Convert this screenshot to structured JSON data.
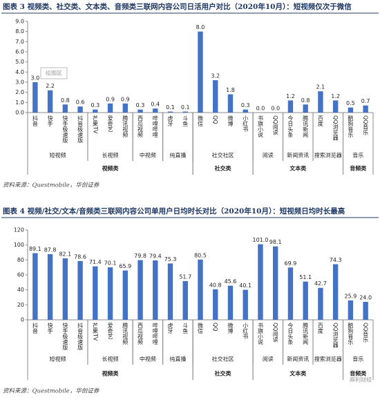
{
  "chart_data": [
    {
      "type": "bar",
      "title": "图表 3  视频类、社交类、文本类、音频类三联网内容公司日活用户对比（2020年10月）：短视频仅次于微信",
      "categories": [
        "抖音",
        "快手",
        "快手极速版",
        "抖音极速版",
        "芒果TV",
        "爱奇艺",
        "腾讯视频",
        "西瓜视频",
        "哔哩哔哩",
        "虎牙",
        "斗鱼",
        "微信",
        "QQ",
        "微博",
        "小红书",
        "书旗小说",
        "QQ阅读",
        "今日头条",
        "腾讯新闻",
        "百度",
        "QQ浏览器",
        "酷狗音乐",
        "QQ音乐"
      ],
      "values": [
        3.0,
        2.2,
        0.8,
        0.6,
        0.3,
        0.9,
        0.9,
        0.3,
        0.4,
        0.1,
        0.1,
        8.0,
        3.2,
        1.8,
        0.3,
        0.0,
        0.0,
        1.2,
        0.8,
        2.1,
        1.2,
        0.5,
        0.7
      ],
      "value_labels": [
        "3.0",
        "2.2",
        "0.8",
        "0.6",
        "0.3",
        "0.9",
        "0.9",
        "0.3",
        "0.4",
        "0.1",
        "0.1",
        "8.0",
        "3.2",
        "1.8",
        "0.3",
        "0.0",
        "0.0",
        "1.2",
        "0.8",
        "2.1",
        "1.2",
        "0.5",
        "0.7"
      ],
      "groups": [
        [
          "短视频",
          null,
          null,
          null,
          "长视频",
          null,
          null,
          "中视频",
          null,
          "纯直播",
          null,
          "社交社区",
          null,
          null,
          null,
          "阅读",
          null,
          "新闻资讯",
          null,
          "搜索浏览器",
          null,
          "音乐",
          null
        ],
        [
          "视频类",
          null,
          null,
          null,
          null,
          null,
          null,
          null,
          null,
          null,
          null,
          "社交类",
          null,
          null,
          null,
          "文本类",
          null,
          null,
          null,
          null,
          null,
          "音频类",
          null
        ]
      ],
      "color": "#4472c4",
      "ylim": [
        0,
        9
      ],
      "yticks": [
        {
          "value": 0,
          "label": "0.0"
        },
        {
          "value": 1,
          "label": "1.0"
        },
        {
          "value": 2,
          "label": "2.0"
        },
        {
          "value": 3,
          "label": "3.0"
        },
        {
          "value": 4,
          "label": "4.0"
        },
        {
          "value": 5,
          "label": "5.0"
        },
        {
          "value": 6,
          "label": "6.0"
        },
        {
          "value": 7,
          "label": "7.0"
        },
        {
          "value": 8,
          "label": "8.0"
        },
        {
          "value": 9,
          "label": "9.0"
        }
      ],
      "annotation": "绘图区",
      "source": "资料来源：Questmobile，华创证券"
    },
    {
      "type": "bar",
      "title": "图表 4  视频/社交/文本/音频类三联网内容公司单用户日均时长对比（2020年10月）：短视频日均时长最高",
      "categories": [
        "抖音",
        "快手",
        "快手极速版",
        "抖音极速版",
        "芒果TV",
        "爱奇艺",
        "腾讯视频",
        "西瓜视频",
        "哔哩哔哩",
        "虎牙",
        "斗鱼",
        "微信",
        "QQ",
        "微博",
        "小红书",
        "书旗小说",
        "QQ阅读",
        "今日头条",
        "腾讯新闻",
        "百度",
        "QQ浏览器",
        "酷狗音乐",
        "QQ音乐"
      ],
      "values": [
        89.1,
        87.8,
        82.1,
        78.6,
        71.4,
        70.1,
        65.9,
        79.8,
        79.4,
        75.3,
        51.7,
        80.5,
        40.8,
        45.6,
        40.1,
        101.0,
        98.1,
        69.9,
        51.1,
        42.7,
        74.3,
        25.9,
        24.0
      ],
      "value_labels": [
        "89.1",
        "87.8",
        "82.1",
        "78.6",
        "71.4",
        "70.1",
        "65.9",
        "79.8",
        "79.4",
        "75.3",
        "51.7",
        "80.5",
        "40.8",
        "45.6",
        "40.1",
        "101.0",
        "98.1",
        "69.9",
        "51.1",
        "42.7",
        "74.3",
        "25.9",
        "24.0"
      ],
      "groups": [
        [
          "短视频",
          null,
          null,
          null,
          "长视频",
          null,
          null,
          "中视频",
          null,
          "纯直播",
          null,
          "社交社区",
          null,
          null,
          null,
          "阅读",
          null,
          "新闻资讯",
          null,
          "搜索浏览器",
          null,
          "音乐",
          null
        ],
        [
          "视频类",
          null,
          null,
          null,
          null,
          null,
          null,
          null,
          null,
          null,
          null,
          "社交类",
          null,
          null,
          null,
          "文本类",
          null,
          null,
          null,
          null,
          null,
          "音频类",
          null
        ]
      ],
      "color": "#4472c4",
      "ylim": [
        0,
        120
      ],
      "yticks": [
        0,
        20,
        40,
        60,
        80,
        100,
        120
      ],
      "annotation": "麻利财经",
      "source": "资料来源：Questmobile，华创证券"
    }
  ]
}
